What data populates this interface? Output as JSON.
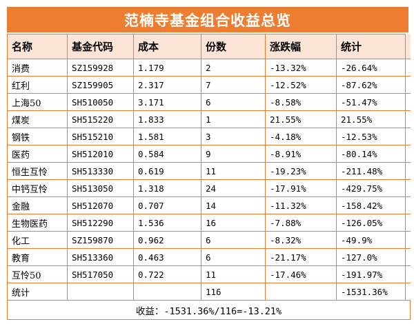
{
  "chart_data": {
    "type": "table",
    "title": "范楠寺基金组合收益总览",
    "columns": [
      "名称",
      "基金代码",
      "成本",
      "份数",
      "涨跌幅",
      "统计"
    ],
    "rows": [
      [
        "消费",
        "SZ159928",
        "1.179",
        "2",
        "-13.32%",
        "-26.64%"
      ],
      [
        "红利",
        "SZ159905",
        "2.317",
        "7",
        "-12.52%",
        "-87.62%"
      ],
      [
        "上海50",
        "SH510050",
        "3.171",
        "6",
        "-8.58%",
        "-51.47%"
      ],
      [
        "煤炭",
        "SH515220",
        "1.833",
        "1",
        "21.55%",
        "21.55%"
      ],
      [
        "钢铁",
        "SH515210",
        "1.581",
        "3",
        "-4.18%",
        "-12.53%"
      ],
      [
        "医药",
        "SH512010",
        "0.584",
        "9",
        "-8.91%",
        "-80.14%"
      ],
      [
        "恒生互怜",
        "SH513330",
        "0.619",
        "11",
        "-19.23%",
        "-211.48%"
      ],
      [
        "中钙互怜",
        "SH513050",
        "1.318",
        "24",
        "-17.91%",
        "-429.75%"
      ],
      [
        "金融",
        "SH512070",
        "0.707",
        "14",
        "-11.32%",
        "-158.42%"
      ],
      [
        "生物医药",
        "SH512290",
        "1.536",
        "16",
        "-7.88%",
        "-126.05%"
      ],
      [
        "化工",
        "SZ159870",
        "0.962",
        "6",
        "-8.32%",
        "-49.9%"
      ],
      [
        "教育",
        "SH513360",
        "0.463",
        "6",
        "-21.17%",
        "-127.0%"
      ],
      [
        "互怜50",
        "SH517050",
        "0.722",
        "11",
        "-17.46%",
        "-191.97%"
      ]
    ],
    "summary_row": [
      "统计",
      "",
      "",
      "116",
      "",
      "-1531.36%"
    ],
    "footer": "收益：-1531.36%/116=-13.21%"
  },
  "colors": {
    "accent": "#ED7D31",
    "header_bg": "#FCE4D6",
    "row_bg": "#FFFFFF",
    "title_text": "#FFFFFF",
    "text": "#000000"
  }
}
